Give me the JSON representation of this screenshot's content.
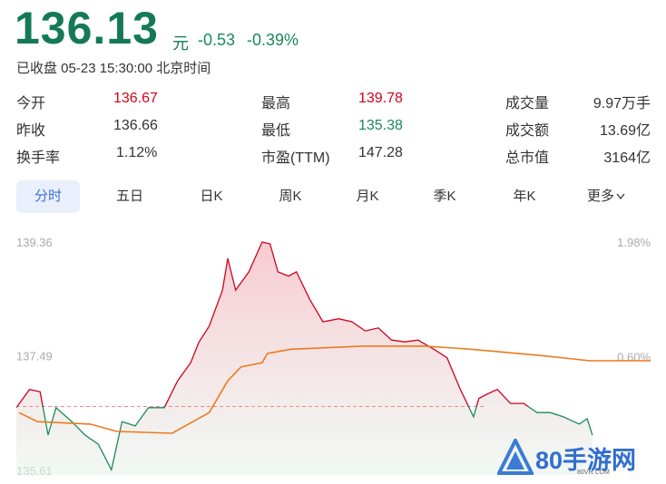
{
  "header": {
    "price": "136.13",
    "unit": "元",
    "change": "-0.53",
    "change_pct": "-0.39%",
    "status": "已收盘 05-23 15:30:00 北京时间"
  },
  "stats": [
    [
      {
        "label": "今开",
        "value": "136.67",
        "color": "#d0021b"
      },
      {
        "label": "最高",
        "value": "139.78",
        "color": "#d0021b"
      },
      {
        "label": "成交量",
        "value": "9.97万手"
      }
    ],
    [
      {
        "label": "昨收",
        "value": "136.66"
      },
      {
        "label": "最低",
        "value": "135.38",
        "color": "#1a8a5a"
      },
      {
        "label": "成交额",
        "value": "13.69亿"
      }
    ],
    [
      {
        "label": "换手率",
        "value": "1.12%"
      },
      {
        "label": "市盈(TTM)",
        "value": "147.28"
      },
      {
        "label": "总市值",
        "value": "3164亿"
      }
    ]
  ],
  "tabs": {
    "items": [
      "分时",
      "五日",
      "日K",
      "周K",
      "月K",
      "季K",
      "年K",
      "更多"
    ],
    "selected": 0
  },
  "watermark": {
    "logo": "80手游网",
    "url": "80VH.COM"
  },
  "chart_data": {
    "type": "line",
    "xlim": [
      0,
      240
    ],
    "ylim": [
      135.61,
      139.36
    ],
    "yticks": [
      139.36,
      137.49,
      135.61
    ],
    "y2lim": [
      -0.77,
      1.98
    ],
    "y2ticks": [
      {
        "value": 1.98,
        "label": "1.98%"
      },
      {
        "value": 0.6,
        "label": "0.60%"
      }
    ],
    "series": [
      {
        "color": "#d0021b",
        "color_below": "#1a8a5a",
        "x": [
          0,
          5,
          9,
          12,
          15,
          21,
          26,
          31,
          36,
          40,
          45,
          50,
          56,
          61,
          66,
          69,
          73,
          78,
          80,
          83,
          88,
          93,
          96,
          99,
          103,
          106,
          111,
          116,
          122,
          127,
          132,
          137,
          142,
          147,
          152,
          158,
          163,
          168,
          173,
          175,
          178,
          182,
          187,
          192,
          197,
          202,
          207,
          213,
          216,
          218
        ],
        "values": [
          136.64,
          136.94,
          136.9,
          136.19,
          136.64,
          136.41,
          136.19,
          136.04,
          135.62,
          136.41,
          136.34,
          136.64,
          136.64,
          137.08,
          137.38,
          137.71,
          137.98,
          138.57,
          139.09,
          138.57,
          138.87,
          139.36,
          139.33,
          138.87,
          138.8,
          138.87,
          138.42,
          138.05,
          138.1,
          138.05,
          137.9,
          137.95,
          137.75,
          137.72,
          137.75,
          137.6,
          137.46,
          136.94,
          136.49,
          136.79,
          136.86,
          136.94,
          136.71,
          136.71,
          136.56,
          136.56,
          136.49,
          136.37,
          136.46,
          136.19
        ]
      },
      {
        "color": "#ec7a1c",
        "x": [
          1,
          8,
          28,
          38,
          59,
          73,
          80,
          85,
          93,
          95,
          104,
          131,
          155,
          172,
          200,
          217,
          240
        ],
        "values": [
          136.56,
          136.41,
          136.37,
          136.25,
          136.22,
          136.56,
          137.08,
          137.31,
          137.38,
          137.53,
          137.6,
          137.65,
          137.65,
          137.6,
          137.49,
          137.41,
          137.41
        ]
      }
    ]
  }
}
